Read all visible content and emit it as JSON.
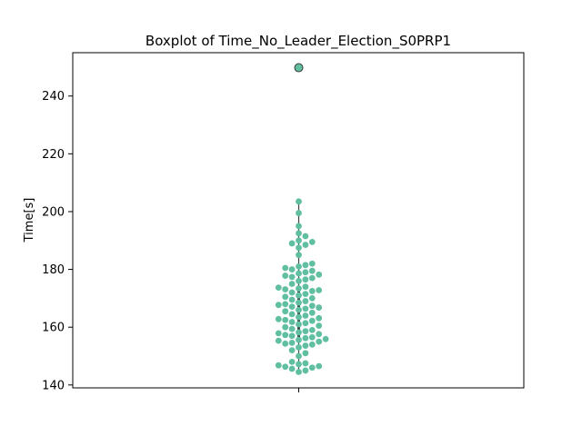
{
  "chart_data": {
    "type": "scatter",
    "title": "Boxplot of Time_No_Leader_Election_S0PRP1",
    "xlabel": "",
    "ylabel": "Time[s]",
    "ylim": [
      139,
      255
    ],
    "yticks": [
      140,
      160,
      180,
      200,
      220,
      240
    ],
    "grid": false,
    "marker_color": "#5fbfa0",
    "outlier_color": "#5fbfa0",
    "line_color": "#404040",
    "box": {
      "whisker_low": 144.5,
      "q1": 155.5,
      "median": 163.0,
      "q3": 174.0,
      "whisker_high": 203.5
    },
    "outliers": [
      249.8
    ],
    "values": [
      144.5,
      145.0,
      145.6,
      146.0,
      146.3,
      146.5,
      146.8,
      147.2,
      147.5,
      148.0,
      150.0,
      151.0,
      152.0,
      153.0,
      153.6,
      154.0,
      154.3,
      154.6,
      155.0,
      155.3,
      155.6,
      155.9,
      156.2,
      156.5,
      157.0,
      157.3,
      157.6,
      157.9,
      158.2,
      158.6,
      159.0,
      159.4,
      160.0,
      160.5,
      161.0,
      161.4,
      161.8,
      162.2,
      162.5,
      162.8,
      163.1,
      163.5,
      164.0,
      164.5,
      165.0,
      165.5,
      166.0,
      166.4,
      166.8,
      167.1,
      167.4,
      167.7,
      168.0,
      168.5,
      169.0,
      169.5,
      170.0,
      170.5,
      171.0,
      171.5,
      172.0,
      172.5,
      172.8,
      173.1,
      173.4,
      173.7,
      174.0,
      175.0,
      176.0,
      176.5,
      177.0,
      177.4,
      177.8,
      178.2,
      178.6,
      179.0,
      179.5,
      180.0,
      180.5,
      181.0,
      181.5,
      182.0,
      185.0,
      187.5,
      188.5,
      189.0,
      189.5,
      190.0,
      191.5,
      192.5,
      195.0,
      199.5,
      203.5
    ]
  }
}
